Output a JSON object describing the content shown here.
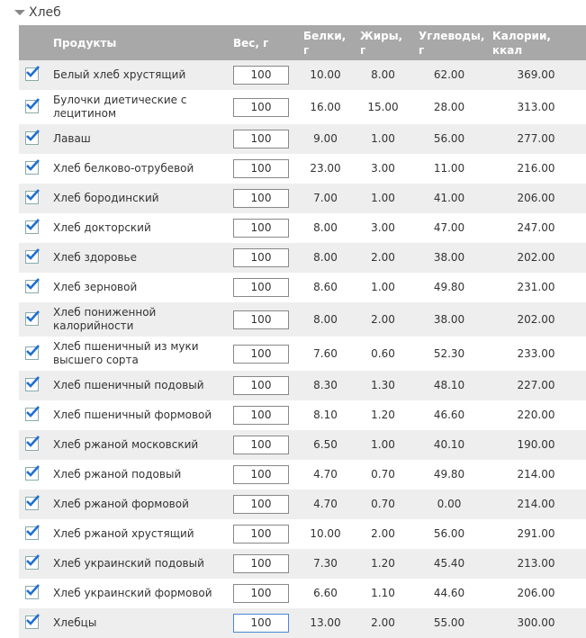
{
  "section": {
    "title": "Хлеб"
  },
  "table": {
    "headers": [
      "Продукты",
      "Вес, г",
      "Белки, г",
      "Жиры, г",
      "Углеводы, г",
      "Калории, ккал"
    ],
    "rows": [
      [
        "Белый хлеб хрустящий",
        "100",
        "10.00",
        "8.00",
        "62.00",
        "369.00"
      ],
      [
        "Булочки диетические с лецитином",
        "100",
        "16.00",
        "15.00",
        "28.00",
        "313.00"
      ],
      [
        "Лаваш",
        "100",
        "9.00",
        "1.00",
        "56.00",
        "277.00"
      ],
      [
        "Хлеб белково-отрубевой",
        "100",
        "23.00",
        "3.00",
        "11.00",
        "216.00"
      ],
      [
        "Хлеб бородинский",
        "100",
        "7.00",
        "1.00",
        "41.00",
        "206.00"
      ],
      [
        "Хлеб докторский",
        "100",
        "8.00",
        "3.00",
        "47.00",
        "247.00"
      ],
      [
        "Хлеб здоровье",
        "100",
        "8.00",
        "2.00",
        "38.00",
        "202.00"
      ],
      [
        "Хлеб зерновой",
        "100",
        "8.60",
        "1.00",
        "49.80",
        "231.00"
      ],
      [
        "Хлеб пониженной калорийности",
        "100",
        "8.00",
        "2.00",
        "38.00",
        "202.00"
      ],
      [
        "Хлеб пшеничный из муки высшего сорта",
        "100",
        "7.60",
        "0.60",
        "52.30",
        "233.00"
      ],
      [
        "Хлеб пшеничный подовый",
        "100",
        "8.30",
        "1.30",
        "48.10",
        "227.00"
      ],
      [
        "Хлеб пшеничный формовой",
        "100",
        "8.10",
        "1.20",
        "46.60",
        "220.00"
      ],
      [
        "Хлеб ржаной московский",
        "100",
        "6.50",
        "1.00",
        "40.10",
        "190.00"
      ],
      [
        "Хлеб ржаной подовый",
        "100",
        "4.70",
        "0.70",
        "49.80",
        "214.00"
      ],
      [
        "Хлеб ржаной формовой",
        "100",
        "4.70",
        "0.70",
        "0.00",
        "214.00"
      ],
      [
        "Хлеб ржаной хрустящий",
        "100",
        "10.00",
        "2.00",
        "56.00",
        "291.00"
      ],
      [
        "Хлеб украинский подовый",
        "100",
        "7.30",
        "1.20",
        "45.40",
        "213.00"
      ],
      [
        "Хлеб украинский формовой",
        "100",
        "6.60",
        "1.10",
        "44.60",
        "206.00"
      ],
      [
        "Хлебцы",
        "100",
        "13.00",
        "2.00",
        "55.00",
        "300.00"
      ]
    ]
  }
}
